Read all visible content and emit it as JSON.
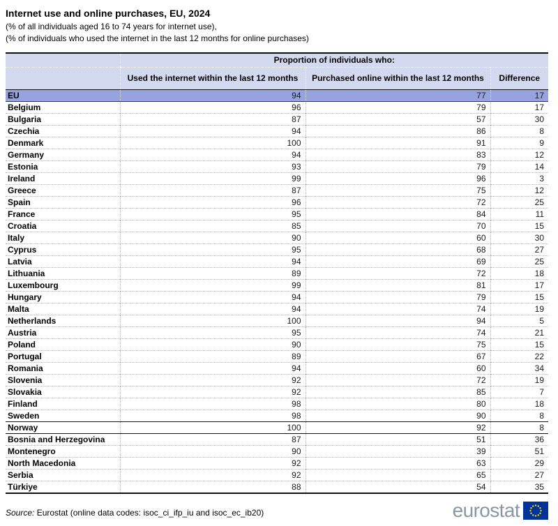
{
  "header": {
    "title": "Internet use and online purchases, EU, 2024",
    "subtitle1": "(% of all individuals aged 16 to 74 years for internet use),",
    "subtitle2": "(% of individuals who used the internet in the last 12 months for online purchases)"
  },
  "table": {
    "group_header": "Proportion of individuals who:",
    "highlight_rows": [
      0
    ],
    "separator_rows": [
      28
    ]
  },
  "chart_data": {
    "type": "table",
    "title": "Internet use and online purchases, EU, 2024",
    "subtitle": [
      "(% of all individuals aged 16 to 74 years for internet use),",
      "(% of individuals who used the internet in the last 12 months for online purchases)"
    ],
    "group_header": "Proportion of individuals who:",
    "categories": [
      "EU",
      "Belgium",
      "Bulgaria",
      "Czechia",
      "Denmark",
      "Germany",
      "Estonia",
      "Ireland",
      "Greece",
      "Spain",
      "France",
      "Croatia",
      "Italy",
      "Cyprus",
      "Latvia",
      "Lithuania",
      "Luxembourg",
      "Hungary",
      "Malta",
      "Netherlands",
      "Austria",
      "Poland",
      "Portugal",
      "Romania",
      "Slovenia",
      "Slovakia",
      "Finland",
      "Sweden",
      "Norway",
      "Bosnia and Herzegovina",
      "Montenegro",
      "North Macedonia",
      "Serbia",
      "Türkiye"
    ],
    "series": [
      {
        "name": "Used the internet within the last 12 months",
        "values": [
          94,
          96,
          87,
          94,
          100,
          94,
          93,
          99,
          87,
          96,
          95,
          85,
          90,
          95,
          94,
          89,
          99,
          94,
          94,
          100,
          95,
          90,
          89,
          94,
          92,
          92,
          98,
          98,
          100,
          87,
          90,
          92,
          92,
          88
        ]
      },
      {
        "name": "Purchased online within the last 12 months",
        "values": [
          77,
          79,
          57,
          86,
          91,
          83,
          79,
          96,
          75,
          72,
          84,
          70,
          60,
          68,
          69,
          72,
          81,
          79,
          74,
          94,
          74,
          75,
          67,
          60,
          72,
          85,
          80,
          90,
          92,
          51,
          39,
          63,
          65,
          54
        ]
      },
      {
        "name": "Difference",
        "values": [
          17,
          17,
          30,
          8,
          9,
          12,
          14,
          3,
          12,
          25,
          11,
          15,
          30,
          27,
          25,
          18,
          17,
          15,
          19,
          5,
          21,
          15,
          22,
          34,
          19,
          7,
          18,
          8,
          8,
          36,
          51,
          29,
          27,
          35
        ]
      }
    ],
    "source": "Eurostat (online data codes: isoc_ci_ifp_iu and isoc_ec_ib20)"
  },
  "source": {
    "label": "Source:",
    "text": "Eurostat (online data codes: isoc_ci_ifp_iu and isoc_ec_ib20)"
  },
  "logo": {
    "text": "eurostat"
  },
  "colors": {
    "header_bg": "#d3daf0",
    "eu_row_bg": "#96a3e0",
    "flag_blue": "#003399",
    "star_yellow": "#ffcc00",
    "logo_gray": "#8b95a5"
  }
}
